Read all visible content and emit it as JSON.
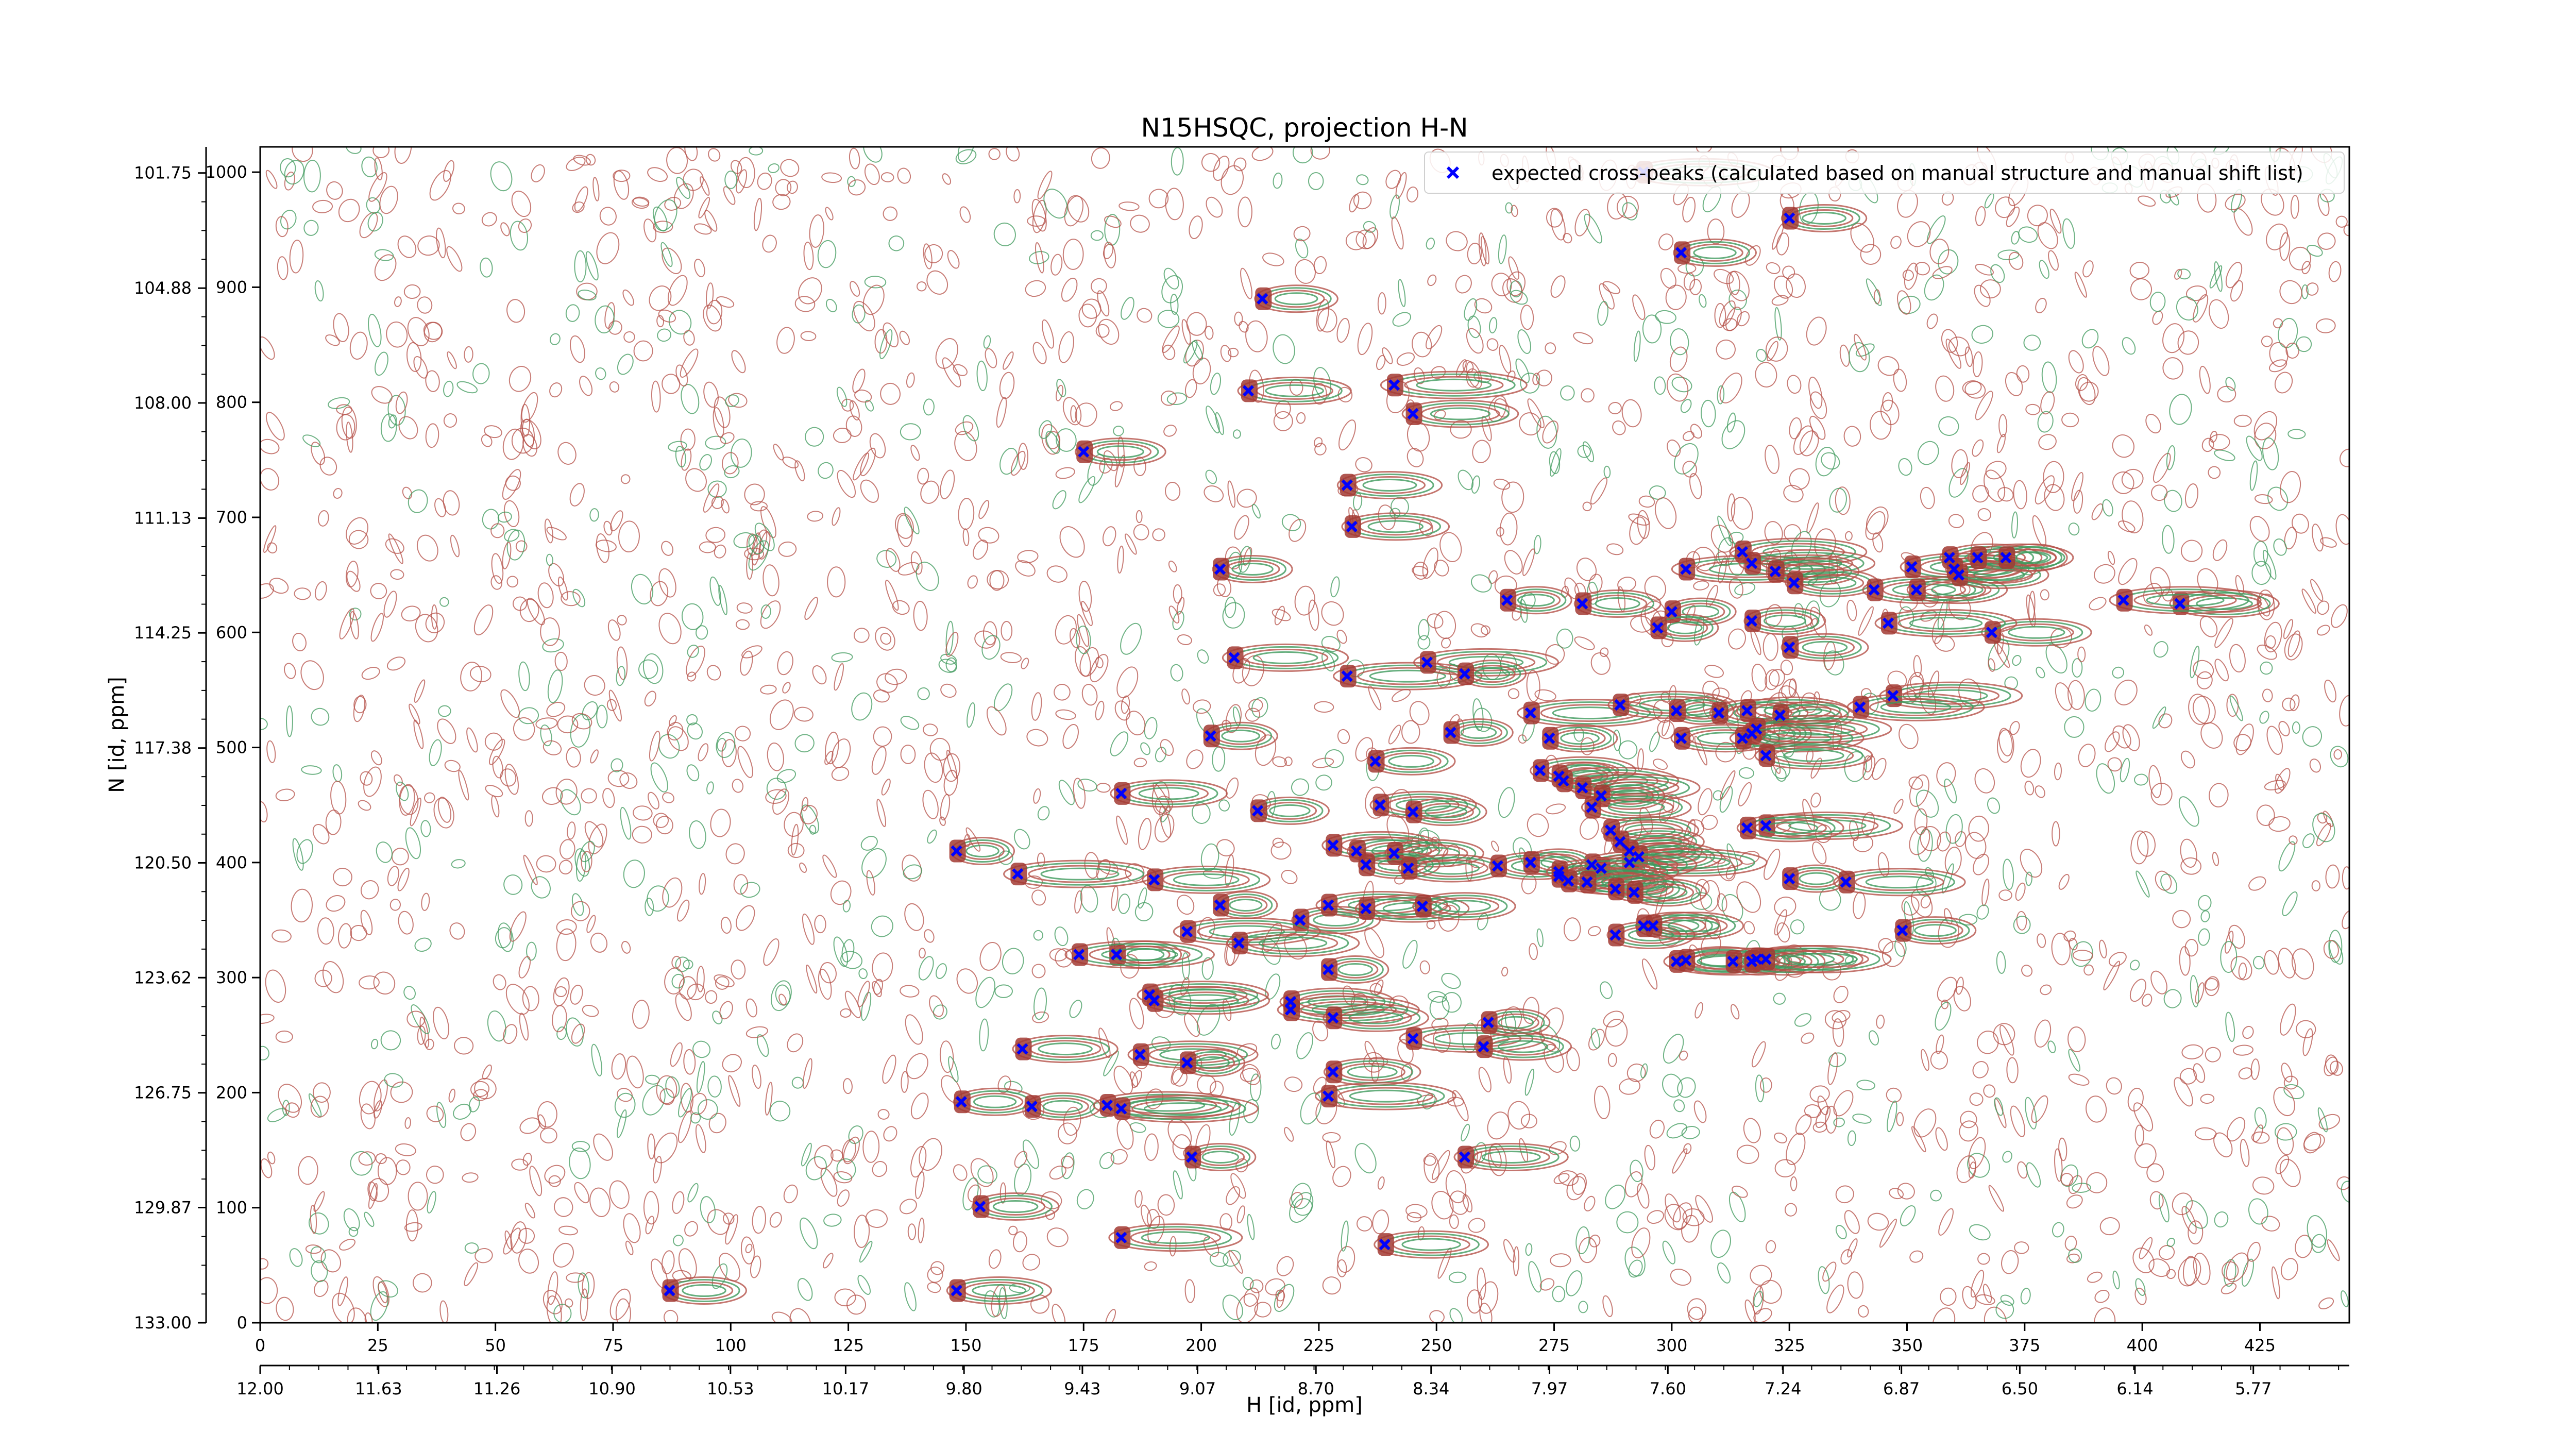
{
  "chart_data": {
    "type": "scatter",
    "title": "N15HSQC, projection H-N",
    "xlabel": "H [id, ppm]",
    "ylabel": "N [id, ppm]",
    "x_index_ticks": [
      "0",
      "25",
      "50",
      "75",
      "100",
      "125",
      "150",
      "175",
      "200",
      "225",
      "250",
      "275",
      "300",
      "325",
      "350",
      "375",
      "400",
      "425"
    ],
    "x_ppm_ticks": [
      "12.00",
      "11.63",
      "11.26",
      "10.90",
      "10.53",
      "10.17",
      "9.80",
      "9.43",
      "9.07",
      "8.70",
      "8.34",
      "7.97",
      "7.60",
      "7.24",
      "6.87",
      "6.50",
      "6.14",
      "5.77"
    ],
    "y_index_ticks": [
      "0",
      "100",
      "200",
      "300",
      "400",
      "500",
      "600",
      "700",
      "800",
      "900",
      "1000"
    ],
    "y_ppm_ticks": [
      "133.00",
      "129.87",
      "126.75",
      "123.62",
      "120.50",
      "117.38",
      "114.25",
      "111.13",
      "108.00",
      "104.88",
      "101.75"
    ],
    "x_index_range": [
      0,
      444
    ],
    "y_index_range": [
      0,
      1022
    ],
    "x_ppm_range": [
      12.0,
      5.47
    ],
    "y_ppm_range": [
      133.0,
      101.04
    ],
    "grid": false,
    "legend_position": "top-right",
    "series": [
      {
        "name": "expected cross-peaks (calculated based on manual structure and manual shift list)",
        "marker": "x",
        "color": "#0000ff",
        "points": [
          [
            294,
            1000
          ],
          [
            325,
            960
          ],
          [
            302,
            930
          ],
          [
            213,
            890
          ],
          [
            210,
            810
          ],
          [
            241,
            815
          ],
          [
            245,
            790
          ],
          [
            175,
            757
          ],
          [
            231,
            728
          ],
          [
            232,
            692
          ],
          [
            204,
            655
          ],
          [
            265,
            628
          ],
          [
            281,
            625
          ],
          [
            300,
            618
          ],
          [
            297,
            604
          ],
          [
            303,
            655
          ],
          [
            315,
            670
          ],
          [
            317,
            660
          ],
          [
            322,
            653
          ],
          [
            326,
            643
          ],
          [
            343,
            637
          ],
          [
            351,
            657
          ],
          [
            352,
            637
          ],
          [
            359,
            665
          ],
          [
            361,
            650
          ],
          [
            360,
            655
          ],
          [
            365,
            665
          ],
          [
            371,
            665
          ],
          [
            368,
            600
          ],
          [
            346,
            608
          ],
          [
            317,
            610
          ],
          [
            408,
            625
          ],
          [
            396,
            628
          ],
          [
            207,
            578
          ],
          [
            231,
            562
          ],
          [
            248,
            574
          ],
          [
            256,
            564
          ],
          [
            325,
            587
          ],
          [
            347,
            545
          ],
          [
            340,
            535
          ],
          [
            270,
            530
          ],
          [
            289,
            537
          ],
          [
            301,
            532
          ],
          [
            310,
            530
          ],
          [
            316,
            532
          ],
          [
            323,
            528
          ],
          [
            202,
            510
          ],
          [
            253,
            513
          ],
          [
            274,
            508
          ],
          [
            302,
            508
          ],
          [
            317,
            512
          ],
          [
            318,
            516
          ],
          [
            315,
            508
          ],
          [
            320,
            493
          ],
          [
            272,
            480
          ],
          [
            276,
            475
          ],
          [
            277,
            471
          ],
          [
            281,
            465
          ],
          [
            285,
            458
          ],
          [
            237,
            488
          ],
          [
            183,
            460
          ],
          [
            212,
            445
          ],
          [
            238,
            450
          ],
          [
            245,
            444
          ],
          [
            283,
            448
          ],
          [
            320,
            432
          ],
          [
            316,
            430
          ],
          [
            287,
            428
          ],
          [
            289,
            418
          ],
          [
            291,
            410
          ],
          [
            293,
            405
          ],
          [
            291,
            400
          ],
          [
            283,
            398
          ],
          [
            285,
            395
          ],
          [
            148,
            410
          ],
          [
            161,
            390
          ],
          [
            190,
            385
          ],
          [
            228,
            415
          ],
          [
            233,
            410
          ],
          [
            241,
            408
          ],
          [
            235,
            398
          ],
          [
            244,
            395
          ],
          [
            263,
            397
          ],
          [
            270,
            400
          ],
          [
            276,
            392
          ],
          [
            276,
            388
          ],
          [
            278,
            384
          ],
          [
            282,
            383
          ],
          [
            288,
            377
          ],
          [
            292,
            374
          ],
          [
            325,
            386
          ],
          [
            337,
            383
          ],
          [
            204,
            363
          ],
          [
            221,
            350
          ],
          [
            227,
            363
          ],
          [
            235,
            360
          ],
          [
            247,
            362
          ],
          [
            182,
            320
          ],
          [
            197,
            340
          ],
          [
            208,
            330
          ],
          [
            174,
            320
          ],
          [
            294,
            345
          ],
          [
            288,
            337
          ],
          [
            296,
            345
          ],
          [
            301,
            314
          ],
          [
            303,
            315
          ],
          [
            313,
            314
          ],
          [
            318,
            316
          ],
          [
            317,
            314
          ],
          [
            320,
            316
          ],
          [
            349,
            341
          ],
          [
            227,
            307
          ],
          [
            189,
            285
          ],
          [
            190,
            280
          ],
          [
            219,
            279
          ],
          [
            219,
            272
          ],
          [
            228,
            265
          ],
          [
            245,
            247
          ],
          [
            261,
            261
          ],
          [
            260,
            240
          ],
          [
            162,
            238
          ],
          [
            187,
            233
          ],
          [
            197,
            226
          ],
          [
            228,
            218
          ],
          [
            227,
            197
          ],
          [
            149,
            192
          ],
          [
            164,
            188
          ],
          [
            180,
            189
          ],
          [
            183,
            186
          ],
          [
            198,
            144
          ],
          [
            153,
            101
          ],
          [
            183,
            74
          ],
          [
            239,
            68
          ],
          [
            256,
            144
          ],
          [
            87,
            28
          ],
          [
            148,
            28
          ]
        ]
      }
    ]
  }
}
